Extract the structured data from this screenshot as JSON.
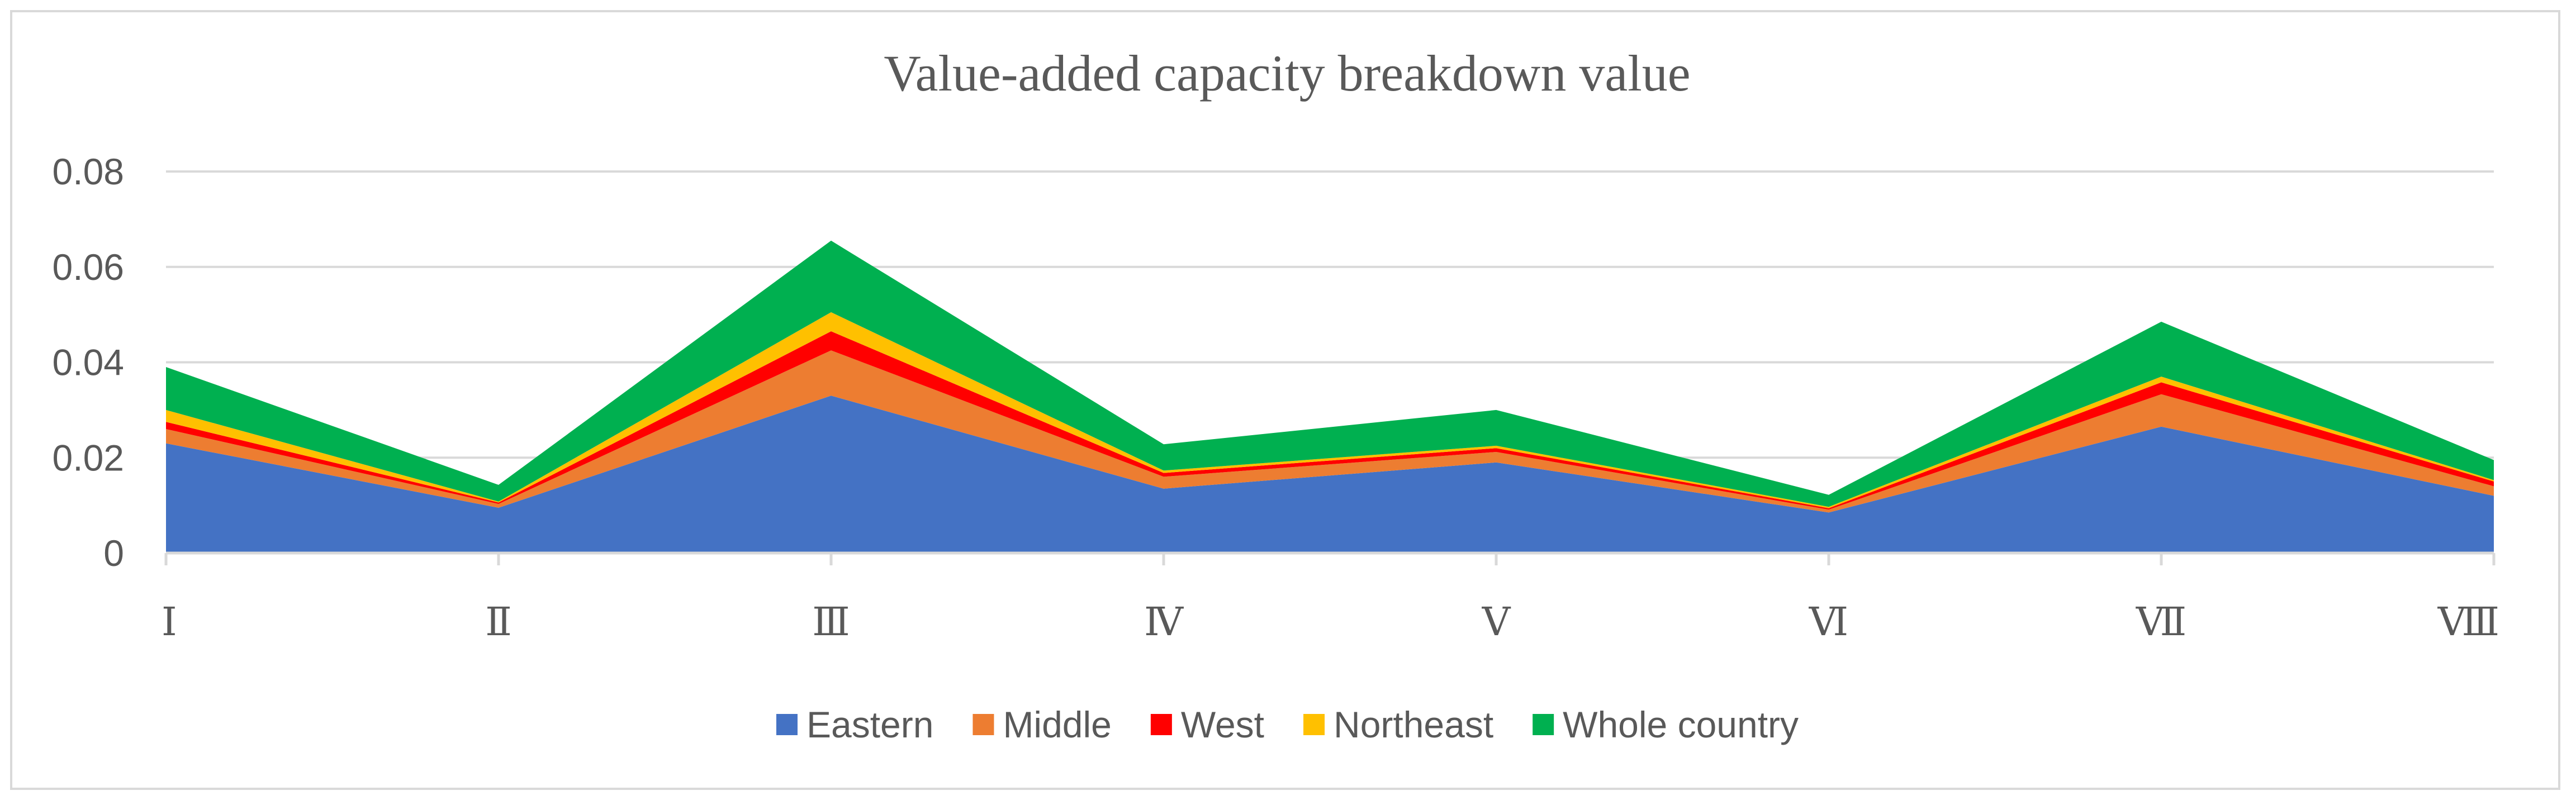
{
  "chart_data": {
    "type": "area",
    "stacked": true,
    "title": "Value-added capacity breakdown value",
    "xlabel": "",
    "ylabel": "",
    "categories": [
      "Ⅰ",
      "Ⅱ",
      "Ⅲ",
      "Ⅳ",
      "Ⅴ",
      "Ⅵ",
      "Ⅶ",
      "Ⅷ"
    ],
    "ylim": [
      0,
      0.08
    ],
    "yticks": [
      0,
      0.02,
      0.04,
      0.06,
      0.08
    ],
    "ytick_labels": [
      "0",
      "0.02",
      "0.04",
      "0.06",
      "0.08"
    ],
    "grid": true,
    "legend_position": "bottom",
    "series": [
      {
        "name": "Eastern",
        "color": "#4472C4",
        "values": [
          0.023,
          0.0095,
          0.033,
          0.0135,
          0.019,
          0.0085,
          0.0265,
          0.012
        ]
      },
      {
        "name": "Middle",
        "color": "#ED7D31",
        "values": [
          0.003,
          0.0008,
          0.0095,
          0.0025,
          0.0022,
          0.0006,
          0.0068,
          0.002
        ]
      },
      {
        "name": "West",
        "color": "#FF0000",
        "values": [
          0.0015,
          0.0003,
          0.004,
          0.0008,
          0.0008,
          0.0003,
          0.0025,
          0.001
        ]
      },
      {
        "name": "Northeast",
        "color": "#FFC000",
        "values": [
          0.0025,
          0.0002,
          0.004,
          0.0005,
          0.0005,
          0.0003,
          0.0012,
          0.0003
        ]
      },
      {
        "name": "Whole country",
        "color": "#00B050",
        "values": [
          0.009,
          0.0035,
          0.015,
          0.0055,
          0.0075,
          0.0025,
          0.0115,
          0.0042
        ]
      }
    ]
  }
}
